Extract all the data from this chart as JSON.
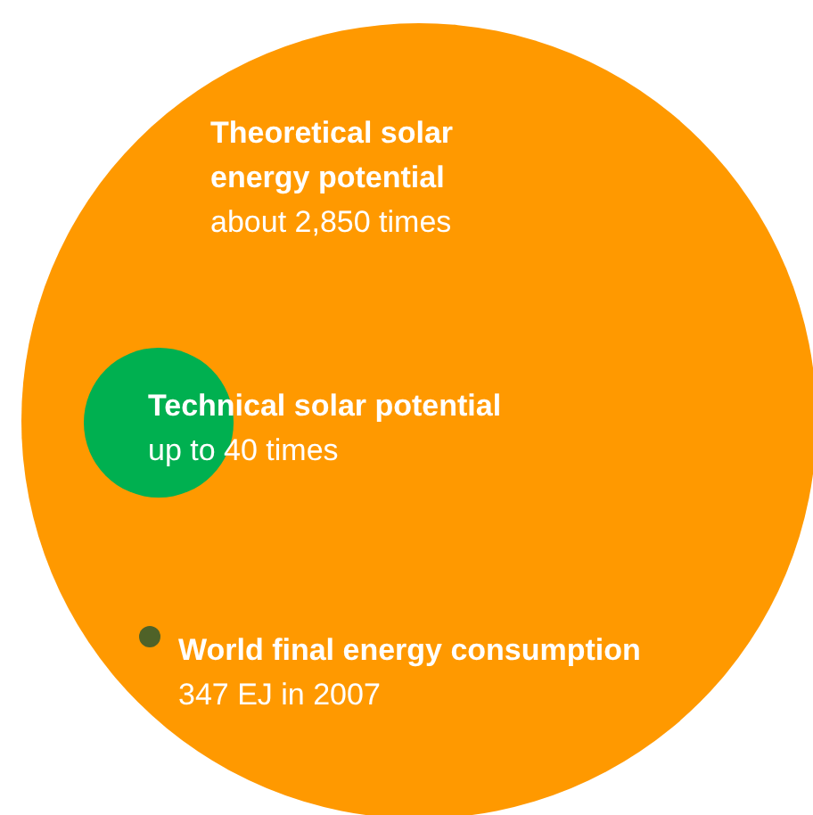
{
  "chart_data": {
    "type": "other",
    "categories": [
      "Theoretical solar energy potential",
      "Technical solar potential",
      "World final energy consumption"
    ],
    "values": [
      2850,
      40,
      null
    ],
    "value_labels": [
      "about 2,850 times",
      "up to 40 times",
      null
    ],
    "annotations": [
      "347 EJ in 2007"
    ],
    "colors": [
      "#ff9900",
      "#00b050",
      "#4f6228"
    ]
  }
}
